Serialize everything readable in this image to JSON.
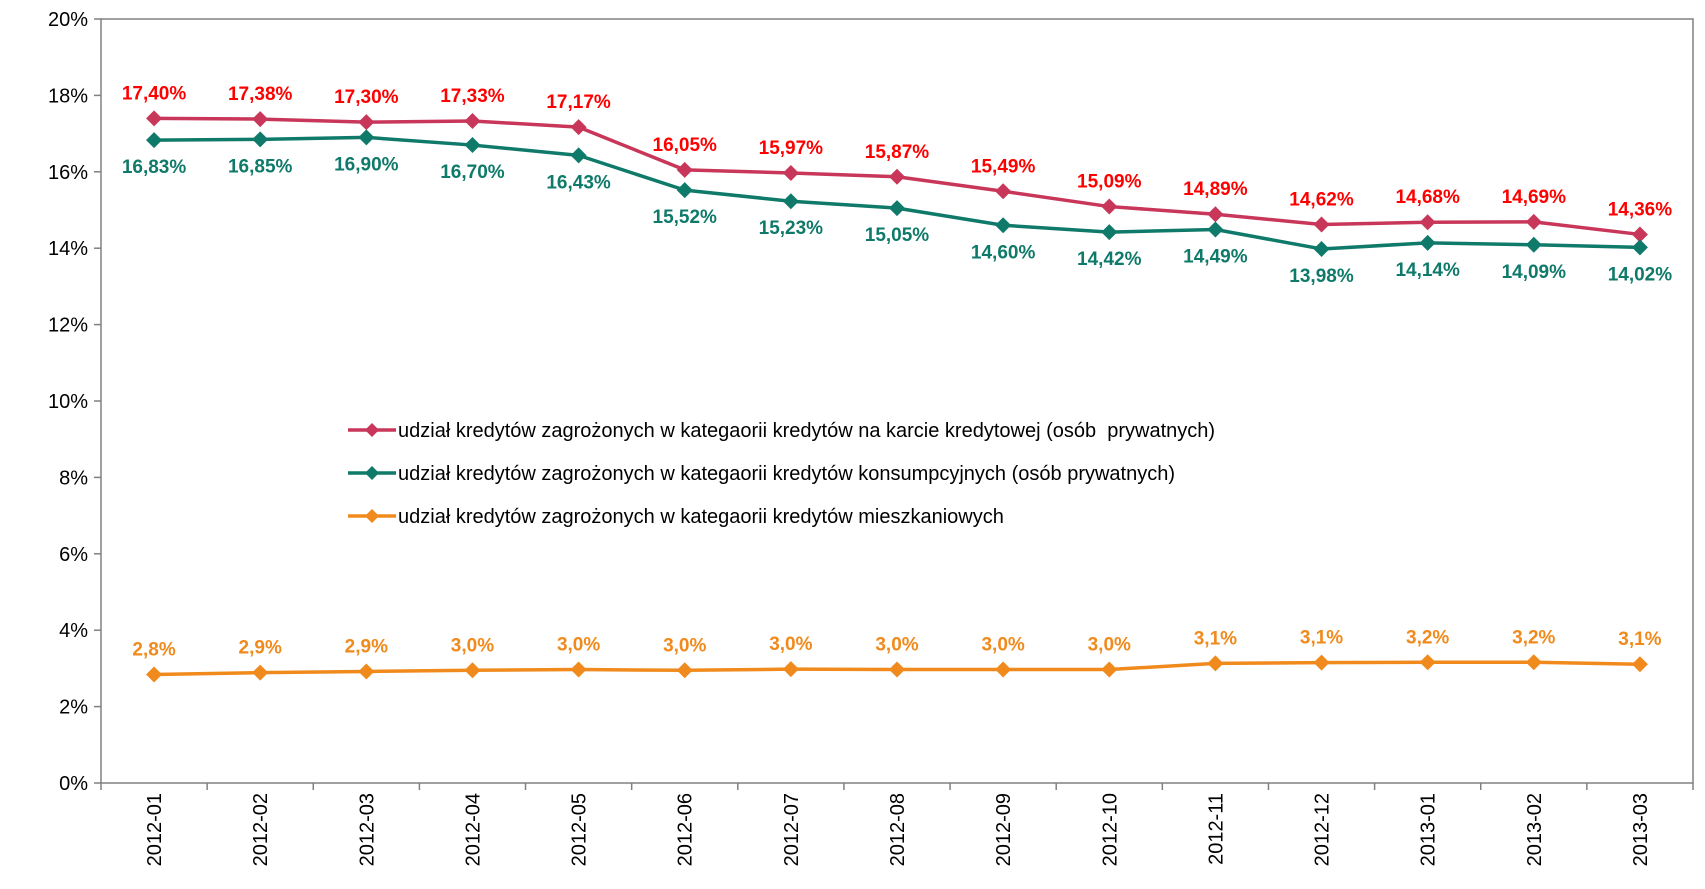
{
  "chart_data": {
    "type": "line",
    "title": "",
    "xlabel": "",
    "ylabel": "",
    "ylim": [
      0,
      20
    ],
    "y_tick_step": 2,
    "y_tick_format": "percent",
    "grid": false,
    "legend_position": "center",
    "categories": [
      "2012-01",
      "2012-02",
      "2012-03",
      "2012-04",
      "2012-05",
      "2012-06",
      "2012-07",
      "2012-08",
      "2012-09",
      "2012-10",
      "2012-11",
      "2012-12",
      "2013-01",
      "2013-02",
      "2013-03"
    ],
    "series": [
      {
        "name": "udział kredytów zagrożonych w kategaorii kredytów na karcie kredytowej (osób  prywatnych)",
        "color": "#c8375a",
        "label_color": "#ff0000",
        "label_position": "above",
        "values": [
          17.4,
          17.38,
          17.3,
          17.33,
          17.17,
          16.05,
          15.97,
          15.87,
          15.49,
          15.09,
          14.89,
          14.62,
          14.68,
          14.69,
          14.36
        ],
        "labels": [
          "17,40%",
          "17,38%",
          "17,30%",
          "17,33%",
          "17,17%",
          "16,05%",
          "15,97%",
          "15,87%",
          "15,49%",
          "15,09%",
          "14,89%",
          "14,62%",
          "14,68%",
          "14,69%",
          "14,36%"
        ]
      },
      {
        "name": "udział kredytów zagrożonych w kategaorii kredytów konsumpcyjnych (osób prywatnych)",
        "color": "#0f7a6a",
        "label_color": "#0f7a6a",
        "label_position": "below",
        "values": [
          16.83,
          16.85,
          16.9,
          16.7,
          16.43,
          15.52,
          15.23,
          15.05,
          14.6,
          14.42,
          14.49,
          13.98,
          14.14,
          14.09,
          14.02
        ],
        "labels": [
          "16,83%",
          "16,85%",
          "16,90%",
          "16,70%",
          "16,43%",
          "15,52%",
          "15,23%",
          "15,05%",
          "14,60%",
          "14,42%",
          "14,49%",
          "13,98%",
          "14,14%",
          "14,09%",
          "14,02%"
        ]
      },
      {
        "name": "udział kredytów zagrożonych w kategaorii kredytów mieszkaniowych",
        "color": "#f08a1c",
        "label_color": "#f08a1c",
        "label_position": "above",
        "values": [
          2.84,
          2.89,
          2.92,
          2.95,
          2.97,
          2.95,
          2.98,
          2.97,
          2.97,
          2.97,
          3.13,
          3.15,
          3.16,
          3.16,
          3.11
        ],
        "labels": [
          "2,8%",
          "2,9%",
          "2,9%",
          "3,0%",
          "3,0%",
          "3,0%",
          "3,0%",
          "3,0%",
          "3,0%",
          "3,0%",
          "3,1%",
          "3,1%",
          "3,2%",
          "3,2%",
          "3,1%"
        ]
      }
    ]
  }
}
